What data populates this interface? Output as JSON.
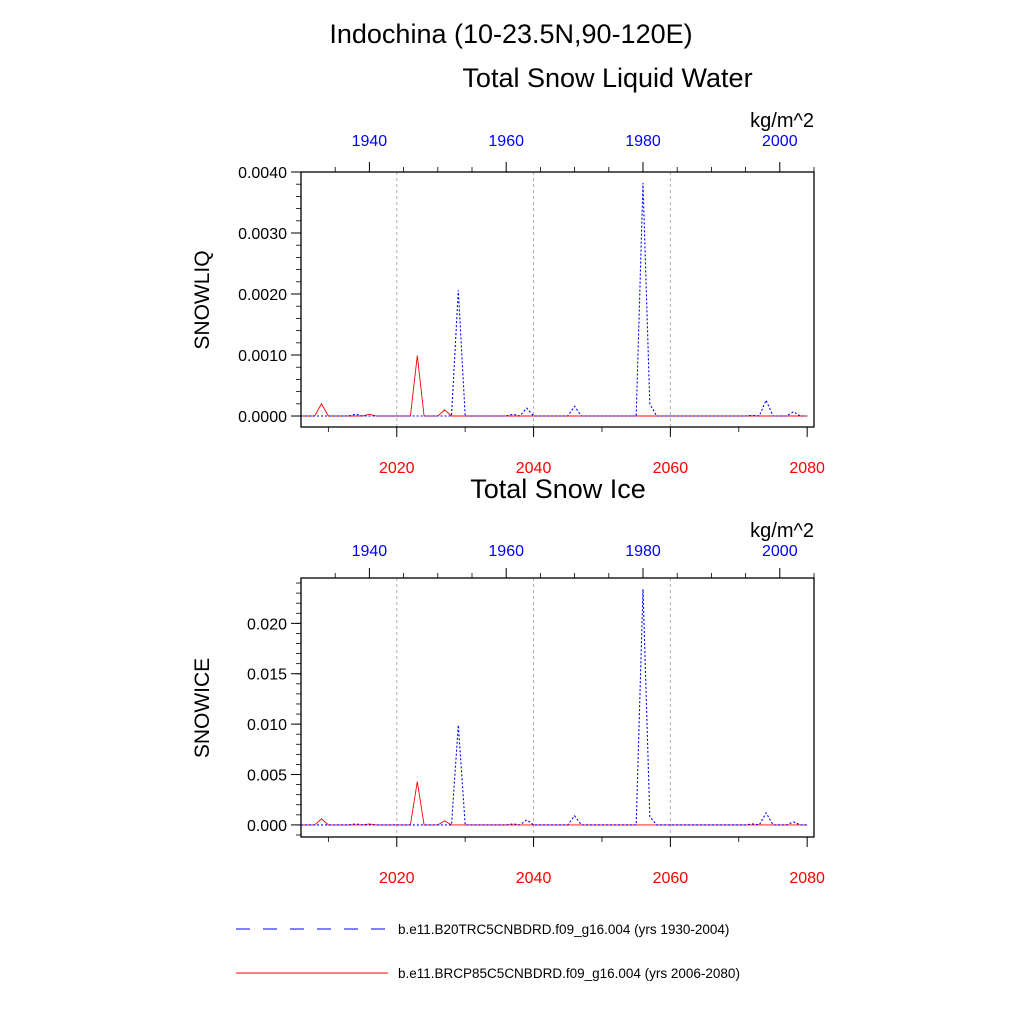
{
  "page": {
    "title": "Indochina (10-23.5N,90-120E)"
  },
  "colors": {
    "historical": "#0000ff",
    "future": "#ff0000",
    "axis": "#000000",
    "grid": "#b0b0b0"
  },
  "chart_data": [
    {
      "type": "line",
      "title": "Total Snow Liquid Water",
      "units": "kg/m^2",
      "ylabel": "SNOWLIQ",
      "ylim": [
        -0.00018,
        0.004
      ],
      "yticks": [
        "0.0000",
        "0.0010",
        "0.0020",
        "0.0030",
        "0.0040"
      ],
      "ytick_values": [
        0,
        0.001,
        0.002,
        0.003,
        0.004
      ],
      "bottom_axis": {
        "range": [
          2006,
          2081
        ],
        "ticks": [
          "2020",
          "2040",
          "2060",
          "2080"
        ],
        "tick_values": [
          2020,
          2040,
          2060,
          2080
        ],
        "color": "#ff0000"
      },
      "top_axis": {
        "range": [
          1930,
          2005
        ],
        "ticks": [
          "1940",
          "1960",
          "1980",
          "2000"
        ],
        "tick_values": [
          1940,
          1960,
          1980,
          2000
        ],
        "color": "#0000ff"
      },
      "grid_x": [
        2020,
        2040,
        2060
      ],
      "series": [
        {
          "name": "b.e11.B20TRC5CNBDRD.f09_g16.004 (yrs 1930-2004)",
          "axis": "top",
          "style": "dashed",
          "x": [
            1930,
            1931,
            1932,
            1933,
            1934,
            1935,
            1936,
            1937,
            1938,
            1939,
            1940,
            1941,
            1942,
            1943,
            1944,
            1945,
            1946,
            1947,
            1948,
            1949,
            1950,
            1951,
            1952,
            1953,
            1954,
            1955,
            1956,
            1957,
            1958,
            1959,
            1960,
            1961,
            1962,
            1963,
            1964,
            1965,
            1966,
            1967,
            1968,
            1969,
            1970,
            1971,
            1972,
            1973,
            1974,
            1975,
            1976,
            1977,
            1978,
            1979,
            1980,
            1981,
            1982,
            1983,
            1984,
            1985,
            1986,
            1987,
            1988,
            1989,
            1990,
            1991,
            1992,
            1993,
            1994,
            1995,
            1996,
            1997,
            1998,
            1999,
            2000,
            2001,
            2002,
            2003,
            2004
          ],
          "values": [
            0,
            0,
            0,
            0,
            0,
            0,
            0,
            0,
            3e-05,
            0,
            0,
            0,
            0,
            0,
            0,
            0,
            0,
            0,
            0,
            0,
            0,
            0,
            0,
            0.00206,
            0,
            0,
            0,
            0,
            0,
            0,
            0,
            3e-05,
            0,
            0.00013,
            0,
            0,
            0,
            0,
            0,
            0,
            0.00016,
            0,
            0,
            0,
            0,
            0,
            0,
            0,
            0,
            0,
            0.00382,
            0.0002,
            0,
            0,
            0,
            0,
            0,
            0,
            0,
            0,
            0,
            0,
            0,
            0,
            0,
            0,
            1e-05,
            0,
            0.00026,
            0,
            0,
            0,
            7e-05,
            0,
            0
          ]
        },
        {
          "name": "b.e11.BRCP85C5CNBDRD.f09_g16.004 (yrs 2006-2080)",
          "axis": "bottom",
          "style": "solid",
          "x": [
            2006,
            2007,
            2008,
            2009,
            2010,
            2011,
            2012,
            2013,
            2014,
            2015,
            2016,
            2017,
            2018,
            2019,
            2020,
            2021,
            2022,
            2023,
            2024,
            2025,
            2026,
            2027,
            2028,
            2029,
            2030,
            2031,
            2032,
            2033,
            2034,
            2035,
            2036,
            2037,
            2038,
            2039,
            2040,
            2041,
            2042,
            2043,
            2044,
            2045,
            2046,
            2047,
            2048,
            2049,
            2050,
            2051,
            2052,
            2053,
            2054,
            2055,
            2056,
            2057,
            2058,
            2059,
            2060,
            2061,
            2062,
            2063,
            2064,
            2065,
            2066,
            2067,
            2068,
            2069,
            2070,
            2071,
            2072,
            2073,
            2074,
            2075,
            2076,
            2077,
            2078,
            2079,
            2080
          ],
          "values": [
            0,
            0,
            0,
            0.0002,
            0,
            0,
            0,
            0,
            0,
            0,
            3e-05,
            0,
            0,
            0,
            0,
            0,
            0,
            0.00099,
            0,
            0,
            0,
            0.0001,
            0,
            0,
            0,
            0,
            0,
            0,
            0,
            0,
            0,
            0,
            0,
            0,
            0,
            0,
            0,
            0,
            0,
            0,
            0,
            0,
            0,
            0,
            0,
            0,
            0,
            0,
            0,
            0,
            0,
            0,
            0,
            0,
            0,
            0,
            0,
            0,
            0,
            0,
            0,
            0,
            0,
            0,
            0,
            0,
            0,
            0,
            0,
            0,
            0,
            0,
            0,
            0,
            0
          ]
        }
      ]
    },
    {
      "type": "line",
      "title": "Total Snow Ice",
      "units": "kg/m^2",
      "ylabel": "SNOWICE",
      "ylim": [
        -0.0012,
        0.0245
      ],
      "yticks": [
        "0.000",
        "0.005",
        "0.010",
        "0.015",
        "0.020"
      ],
      "ytick_values": [
        0,
        0.005,
        0.01,
        0.015,
        0.02
      ],
      "bottom_axis": {
        "range": [
          2006,
          2081
        ],
        "ticks": [
          "2020",
          "2040",
          "2060",
          "2080"
        ],
        "tick_values": [
          2020,
          2040,
          2060,
          2080
        ],
        "color": "#ff0000"
      },
      "top_axis": {
        "range": [
          1930,
          2005
        ],
        "ticks": [
          "1940",
          "1960",
          "1980",
          "2000"
        ],
        "tick_values": [
          1940,
          1960,
          1980,
          2000
        ],
        "color": "#0000ff"
      },
      "grid_x": [
        2020,
        2040,
        2060
      ],
      "series": [
        {
          "name": "b.e11.B20TRC5CNBDRD.f09_g16.004 (yrs 1930-2004)",
          "axis": "top",
          "style": "dashed",
          "x": [
            1930,
            1931,
            1932,
            1933,
            1934,
            1935,
            1936,
            1937,
            1938,
            1939,
            1940,
            1941,
            1942,
            1943,
            1944,
            1945,
            1946,
            1947,
            1948,
            1949,
            1950,
            1951,
            1952,
            1953,
            1954,
            1955,
            1956,
            1957,
            1958,
            1959,
            1960,
            1961,
            1962,
            1963,
            1964,
            1965,
            1966,
            1967,
            1968,
            1969,
            1970,
            1971,
            1972,
            1973,
            1974,
            1975,
            1976,
            1977,
            1978,
            1979,
            1980,
            1981,
            1982,
            1983,
            1984,
            1985,
            1986,
            1987,
            1988,
            1989,
            1990,
            1991,
            1992,
            1993,
            1994,
            1995,
            1996,
            1997,
            1998,
            1999,
            2000,
            2001,
            2002,
            2003,
            2004
          ],
          "values": [
            0,
            0,
            0,
            0,
            0,
            0,
            0,
            0,
            0.0001,
            0,
            0,
            0,
            0,
            0,
            0,
            0,
            0,
            0,
            0,
            0,
            0,
            0,
            0,
            0.0099,
            0,
            0,
            0,
            0,
            0,
            0,
            0,
            0.0001,
            0,
            0.0005,
            0,
            0,
            0,
            0,
            0,
            0,
            0.0009,
            0,
            0,
            0,
            0,
            0,
            0,
            0,
            0,
            0,
            0.0234,
            0.0008,
            0,
            0,
            0,
            0,
            0,
            0,
            0,
            0,
            0,
            0,
            0,
            0,
            0,
            0,
            0.0001,
            0,
            0.0012,
            0,
            0,
            0,
            0.0003,
            0,
            0
          ]
        },
        {
          "name": "b.e11.BRCP85C5CNBDRD.f09_g16.004 (yrs 2006-2080)",
          "axis": "bottom",
          "style": "solid",
          "x": [
            2006,
            2007,
            2008,
            2009,
            2010,
            2011,
            2012,
            2013,
            2014,
            2015,
            2016,
            2017,
            2018,
            2019,
            2020,
            2021,
            2022,
            2023,
            2024,
            2025,
            2026,
            2027,
            2028,
            2029,
            2030,
            2031,
            2032,
            2033,
            2034,
            2035,
            2036,
            2037,
            2038,
            2039,
            2040,
            2041,
            2042,
            2043,
            2044,
            2045,
            2046,
            2047,
            2048,
            2049,
            2050,
            2051,
            2052,
            2053,
            2054,
            2055,
            2056,
            2057,
            2058,
            2059,
            2060,
            2061,
            2062,
            2063,
            2064,
            2065,
            2066,
            2067,
            2068,
            2069,
            2070,
            2071,
            2072,
            2073,
            2074,
            2075,
            2076,
            2077,
            2078,
            2079,
            2080
          ],
          "values": [
            0,
            0,
            0,
            0.0006,
            0,
            0,
            0,
            0,
            0,
            0,
            0.0001,
            0,
            0,
            0,
            0,
            0,
            0,
            0.0043,
            0,
            0,
            0,
            0.0004,
            0,
            0,
            0,
            0,
            0,
            0,
            0,
            0,
            0,
            0,
            0,
            0,
            0,
            0,
            0,
            0,
            0,
            0,
            0,
            0,
            0,
            0,
            0,
            0,
            0,
            0,
            0,
            0,
            0,
            0,
            0,
            0,
            0,
            0,
            0,
            0,
            0,
            0,
            0,
            0,
            0,
            0,
            0,
            0,
            0,
            0,
            0,
            0,
            0,
            0,
            0,
            0,
            0
          ]
        }
      ]
    }
  ],
  "legend": [
    {
      "label": "b.e11.B20TRC5CNBDRD.f09_g16.004 (yrs 1930-2004)",
      "style": "dashed",
      "color_key": "historical"
    },
    {
      "label": "b.e11.BRCP85C5CNBDRD.f09_g16.004 (yrs 2006-2080)",
      "style": "solid",
      "color_key": "future"
    }
  ]
}
